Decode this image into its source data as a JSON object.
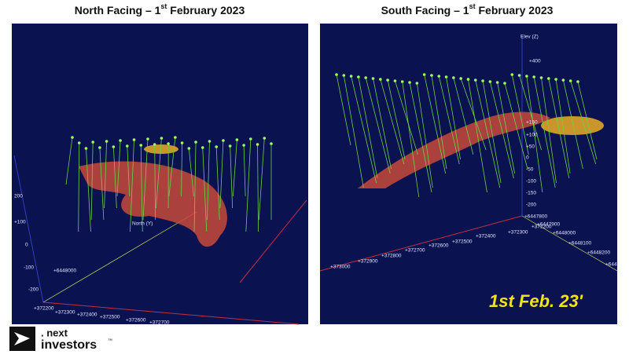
{
  "panels": [
    {
      "title": {
        "lead": "North Facing – 1",
        "sup": "st",
        "rest": " February 2023"
      },
      "labels": [
        "200",
        "+100",
        "0",
        "-100",
        "-200",
        "North (Y)",
        "+6448000",
        "+372200",
        "+372300",
        "+372400",
        "+372500",
        "+372600",
        "+372700"
      ]
    },
    {
      "title": {
        "lead": "South Facing – 1",
        "sup": "st",
        "rest": " February 2023"
      },
      "labels": [
        "Elev (Z)",
        "+400",
        "+150",
        "+100",
        "+50",
        "0",
        "-50",
        "-100",
        "-150",
        "-200",
        "+6447800",
        "+6447900",
        "+6448000",
        "+6448100",
        "+6448200",
        "+644",
        "+372200",
        "+372300",
        "+372400",
        "+372500",
        "+372600",
        "+372700",
        "+372800",
        "+372900",
        "+373000"
      ],
      "stamp": "1st Feb. 23'"
    }
  ],
  "logo": {
    "line1": ". next",
    "line2": "investors",
    "mark": "™"
  }
}
